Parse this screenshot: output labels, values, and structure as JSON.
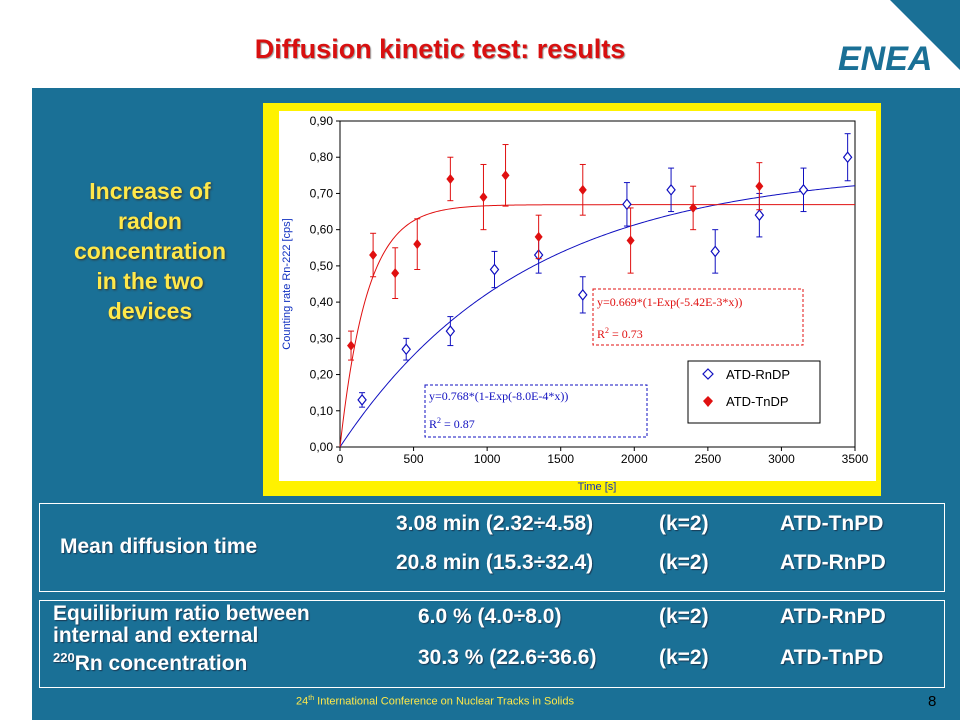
{
  "slide": {
    "title": "Diffusion kinetic test: results",
    "logo_text": "ENEA",
    "side_note": [
      "Increase of",
      "radon",
      "concentration",
      "in the two",
      "devices"
    ],
    "footer": "International Conference on Nuclear Tracks in Solids",
    "footer_ordinal_number": "24",
    "footer_ordinal_suffix": "th",
    "page_number": "8",
    "colors": {
      "background": "#1a7096",
      "title": "#d81010",
      "highlight": "#ffe84a",
      "chart_frame": "#fff200"
    }
  },
  "results": {
    "mean_diffusion": {
      "label": "Mean diffusion time",
      "rows": [
        {
          "value": "3.08 min (2.32÷4.58)",
          "k": "(k=2)",
          "device": "ATD-TnPD"
        },
        {
          "value": "20.8 min (15.3÷32.4)",
          "k": "(k=2)",
          "device": "ATD-RnPD"
        }
      ]
    },
    "equilibrium": {
      "label_line1": "Equilibrium ratio between",
      "label_line2": "internal and external",
      "label_sup": "220",
      "label_line3": "Rn concentration",
      "rows": [
        {
          "value": "6.0 % (4.0÷8.0)",
          "k": "(k=2)",
          "device": "ATD-RnPD"
        },
        {
          "value": "30.3 % (22.6÷36.6)",
          "k": "(k=2)",
          "device": "ATD-TnPD"
        }
      ]
    }
  },
  "chart_data": {
    "type": "scatter",
    "xlabel": "Time [s]",
    "ylabel": "Counting rate Rn-222 [cps]",
    "xlim": [
      0,
      3500
    ],
    "ylim": [
      0,
      0.9
    ],
    "xticks": [
      0,
      500,
      1000,
      1500,
      2000,
      2500,
      3000,
      3500
    ],
    "yticks": [
      0.0,
      0.1,
      0.2,
      0.3,
      0.4,
      0.5,
      0.6,
      0.7,
      0.8,
      0.9
    ],
    "xtick_labels": [
      "0",
      "500",
      "1000",
      "1500",
      "2000",
      "2500",
      "3000",
      "3500"
    ],
    "ytick_labels": [
      "0,00",
      "0,10",
      "0,20",
      "0,30",
      "0,40",
      "0,50",
      "0,60",
      "0,70",
      "0,80",
      "0,90"
    ],
    "grid": false,
    "legend_position": "bottom-right",
    "series": [
      {
        "name": "ATD-RnDP",
        "marker": "open-diamond",
        "color": "#1010c0",
        "x": [
          150,
          450,
          750,
          1050,
          1350,
          1650,
          1950,
          2250,
          2550,
          2850,
          3150,
          3450
        ],
        "y": [
          0.13,
          0.27,
          0.32,
          0.49,
          0.53,
          0.42,
          0.67,
          0.71,
          0.54,
          0.64,
          0.71,
          0.8
        ],
        "err": [
          0.02,
          0.03,
          0.04,
          0.05,
          0.05,
          0.05,
          0.06,
          0.06,
          0.06,
          0.06,
          0.06,
          0.065
        ],
        "fit": {
          "equation": "y=0.768*(1-Exp(-8.0E-4*x))",
          "r2_label": "R",
          "r2_sup": "2",
          "r2_value": " = 0.87",
          "a": 0.768,
          "k": 0.0008
        }
      },
      {
        "name": "ATD-TnDP",
        "marker": "filled-diamond",
        "color": "#e01010",
        "x": [
          75,
          225,
          375,
          525,
          750,
          975,
          1125,
          1350,
          1650,
          1975,
          2400,
          2850
        ],
        "y": [
          0.28,
          0.53,
          0.48,
          0.56,
          0.74,
          0.69,
          0.75,
          0.58,
          0.71,
          0.57,
          0.66,
          0.72
        ],
        "err": [
          0.04,
          0.06,
          0.07,
          0.07,
          0.06,
          0.09,
          0.085,
          0.06,
          0.07,
          0.09,
          0.06,
          0.065
        ],
        "fit": {
          "equation": "y=0.669*(1-Exp(-5.42E-3*x))",
          "r2_label": "R",
          "r2_sup": "2",
          "r2_value": " = 0.73",
          "a": 0.669,
          "k": 0.00542
        }
      }
    ]
  }
}
